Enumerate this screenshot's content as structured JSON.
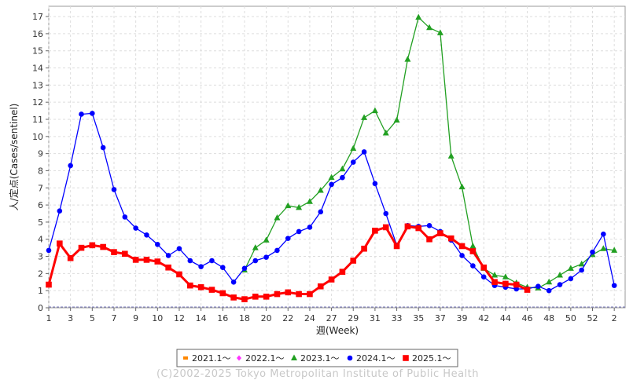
{
  "chart_data": {
    "type": "line",
    "xlabel": "週(Week)",
    "ylabel": "人/定点(Cases/sentinel)",
    "xlim": [
      0,
      53
    ],
    "ylim": [
      0,
      17.6
    ],
    "x_ticks": [
      "1",
      "3",
      "5",
      "7",
      "9",
      "10",
      "12",
      "14",
      "16",
      "18",
      "20",
      "22",
      "24",
      "27",
      "29",
      "31",
      "33",
      "35",
      "37",
      "39",
      "42",
      "44",
      "46",
      "48",
      "50",
      "52",
      "2"
    ],
    "y_ticks": [
      "0",
      "1",
      "2",
      "3",
      "4",
      "5",
      "6",
      "7",
      "8",
      "9",
      "10",
      "11",
      "12",
      "13",
      "14",
      "15",
      "16",
      "17"
    ],
    "grid": true,
    "legend_position": "bottom",
    "series": [
      {
        "name": "2021.1～",
        "color": "#ff8800",
        "marker": "square-small",
        "points": []
      },
      {
        "name": "2022.1～",
        "color": "#ff33ff",
        "marker": "diamond",
        "points": []
      },
      {
        "name": "2023.1～",
        "color": "#22a022",
        "marker": "triangle",
        "points": [
          [
            18,
            2.2
          ],
          [
            19,
            3.5
          ],
          [
            20,
            3.95
          ],
          [
            21,
            5.25
          ],
          [
            22,
            5.95
          ],
          [
            23,
            5.85
          ],
          [
            24,
            6.2
          ],
          [
            25,
            6.85
          ],
          [
            26,
            7.6
          ],
          [
            27,
            8.1
          ],
          [
            28,
            9.3
          ],
          [
            29,
            11.1
          ],
          [
            30,
            11.5
          ],
          [
            31,
            10.2
          ],
          [
            32,
            10.95
          ],
          [
            33,
            14.5
          ],
          [
            34,
            16.95
          ],
          [
            35,
            16.35
          ],
          [
            36,
            16.05
          ],
          [
            37,
            8.85
          ],
          [
            38,
            7.05
          ],
          [
            39,
            3.6
          ],
          [
            40,
            2.3
          ],
          [
            41,
            1.9
          ],
          [
            42,
            1.8
          ],
          [
            43,
            1.45
          ],
          [
            44,
            1.2
          ],
          [
            45,
            1.15
          ],
          [
            46,
            1.5
          ],
          [
            47,
            1.9
          ],
          [
            48,
            2.3
          ],
          [
            49,
            2.55
          ],
          [
            50,
            3.1
          ],
          [
            51,
            3.45
          ],
          [
            52,
            3.35
          ]
        ]
      },
      {
        "name": "2024.1～",
        "color": "#0000ff",
        "marker": "circle",
        "points": [
          [
            0,
            3.35
          ],
          [
            1,
            5.65
          ],
          [
            2,
            8.3
          ],
          [
            3,
            11.3
          ],
          [
            4,
            11.35
          ],
          [
            5,
            9.35
          ],
          [
            6,
            6.9
          ],
          [
            7,
            5.3
          ],
          [
            8,
            4.65
          ],
          [
            9,
            4.25
          ],
          [
            10,
            3.7
          ],
          [
            11,
            3.05
          ],
          [
            12,
            3.45
          ],
          [
            13,
            2.75
          ],
          [
            14,
            2.4
          ],
          [
            15,
            2.75
          ],
          [
            16,
            2.35
          ],
          [
            17,
            1.5
          ],
          [
            18,
            2.3
          ],
          [
            19,
            2.75
          ],
          [
            20,
            2.95
          ],
          [
            21,
            3.35
          ],
          [
            22,
            4.05
          ],
          [
            23,
            4.45
          ],
          [
            24,
            4.7
          ],
          [
            25,
            5.6
          ],
          [
            26,
            7.2
          ],
          [
            27,
            7.6
          ],
          [
            28,
            8.5
          ],
          [
            29,
            9.1
          ],
          [
            30,
            7.25
          ],
          [
            31,
            5.5
          ],
          [
            32,
            3.65
          ],
          [
            33,
            4.8
          ],
          [
            34,
            4.75
          ],
          [
            35,
            4.8
          ],
          [
            36,
            4.45
          ],
          [
            37,
            3.95
          ],
          [
            38,
            3.05
          ],
          [
            39,
            2.45
          ],
          [
            40,
            1.8
          ],
          [
            41,
            1.3
          ],
          [
            42,
            1.2
          ],
          [
            43,
            1.1
          ],
          [
            44,
            1.1
          ],
          [
            45,
            1.25
          ],
          [
            46,
            1.0
          ],
          [
            47,
            1.35
          ],
          [
            48,
            1.7
          ],
          [
            49,
            2.2
          ],
          [
            50,
            3.25
          ],
          [
            51,
            4.3
          ],
          [
            52,
            1.3
          ]
        ]
      },
      {
        "name": "2025.1～",
        "color": "#ff0000",
        "marker": "square",
        "points": [
          [
            0,
            1.35
          ],
          [
            1,
            3.75
          ],
          [
            2,
            2.9
          ],
          [
            3,
            3.5
          ],
          [
            4,
            3.65
          ],
          [
            5,
            3.55
          ],
          [
            6,
            3.25
          ],
          [
            7,
            3.15
          ],
          [
            8,
            2.8
          ],
          [
            9,
            2.8
          ],
          [
            10,
            2.7
          ],
          [
            11,
            2.35
          ],
          [
            12,
            1.95
          ],
          [
            13,
            1.3
          ],
          [
            14,
            1.2
          ],
          [
            15,
            1.05
          ],
          [
            16,
            0.85
          ],
          [
            17,
            0.6
          ],
          [
            18,
            0.5
          ],
          [
            19,
            0.65
          ],
          [
            20,
            0.65
          ],
          [
            21,
            0.8
          ],
          [
            22,
            0.9
          ],
          [
            23,
            0.8
          ],
          [
            24,
            0.8
          ],
          [
            25,
            1.25
          ],
          [
            26,
            1.65
          ],
          [
            27,
            2.1
          ],
          [
            28,
            2.75
          ],
          [
            29,
            3.45
          ],
          [
            30,
            4.5
          ],
          [
            31,
            4.7
          ],
          [
            32,
            3.6
          ],
          [
            33,
            4.75
          ],
          [
            34,
            4.65
          ],
          [
            35,
            4.0
          ],
          [
            36,
            4.35
          ],
          [
            37,
            4.05
          ],
          [
            38,
            3.6
          ],
          [
            39,
            3.3
          ],
          [
            40,
            2.35
          ],
          [
            41,
            1.5
          ],
          [
            42,
            1.4
          ],
          [
            43,
            1.35
          ],
          [
            44,
            1.05
          ]
        ]
      }
    ]
  },
  "copyright": "(C)2002-2025 Tokyo Metropolitan Institute of Public Health"
}
